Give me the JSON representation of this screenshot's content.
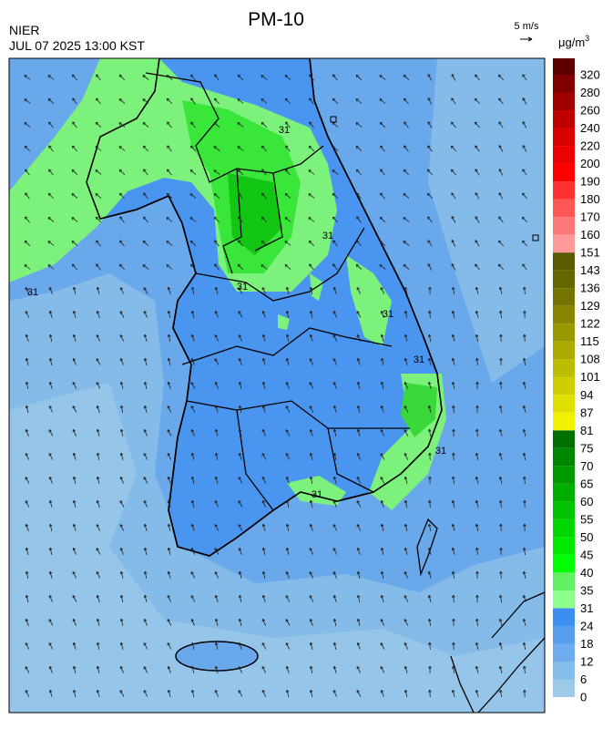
{
  "header": {
    "title": "PM-10",
    "source": "NIER",
    "datetime": "JUL 07 2025 13:00 KST",
    "wind_scale": "5 m/s"
  },
  "legend": {
    "unit": "μg/m",
    "unit_sup": "3",
    "bins": [
      {
        "label": 0,
        "color": "#9ccae8"
      },
      {
        "label": 6,
        "color": "#85bdea"
      },
      {
        "label": 12,
        "color": "#6eaced"
      },
      {
        "label": 18,
        "color": "#579dee"
      },
      {
        "label": 24,
        "color": "#3c8ef0"
      },
      {
        "label": 31,
        "color": "#8cff8c"
      },
      {
        "label": 35,
        "color": "#64f064"
      },
      {
        "label": 40,
        "color": "#00ff00"
      },
      {
        "label": 45,
        "color": "#00ea00"
      },
      {
        "label": 50,
        "color": "#00d600"
      },
      {
        "label": 55,
        "color": "#00c200"
      },
      {
        "label": 60,
        "color": "#00ae00"
      },
      {
        "label": 65,
        "color": "#009a00"
      },
      {
        "label": 70,
        "color": "#008600"
      },
      {
        "label": 75,
        "color": "#007000"
      },
      {
        "label": 81,
        "color": "#f2f200"
      },
      {
        "label": 87,
        "color": "#e0e000"
      },
      {
        "label": 94,
        "color": "#cece00"
      },
      {
        "label": 101,
        "color": "#bcbc00"
      },
      {
        "label": 108,
        "color": "#aaaa00"
      },
      {
        "label": 115,
        "color": "#989800"
      },
      {
        "label": 122,
        "color": "#868600"
      },
      {
        "label": 129,
        "color": "#747400"
      },
      {
        "label": 136,
        "color": "#666600"
      },
      {
        "label": 143,
        "color": "#5a5a00"
      },
      {
        "label": 151,
        "color": "#ff9a9a"
      },
      {
        "label": 160,
        "color": "#ff7878"
      },
      {
        "label": 170,
        "color": "#ff5656"
      },
      {
        "label": 180,
        "color": "#ff3030"
      },
      {
        "label": 190,
        "color": "#ff0000"
      },
      {
        "label": 200,
        "color": "#ec0000"
      },
      {
        "label": 220,
        "color": "#d80000"
      },
      {
        "label": 240,
        "color": "#c00000"
      },
      {
        "label": 260,
        "color": "#a00000"
      },
      {
        "label": 280,
        "color": "#800000"
      },
      {
        "label": 320,
        "color": "#5e0000"
      }
    ]
  },
  "map": {
    "contour_labels": [
      "31",
      "31",
      "31",
      "31",
      "31",
      "31",
      "31",
      "31"
    ]
  }
}
